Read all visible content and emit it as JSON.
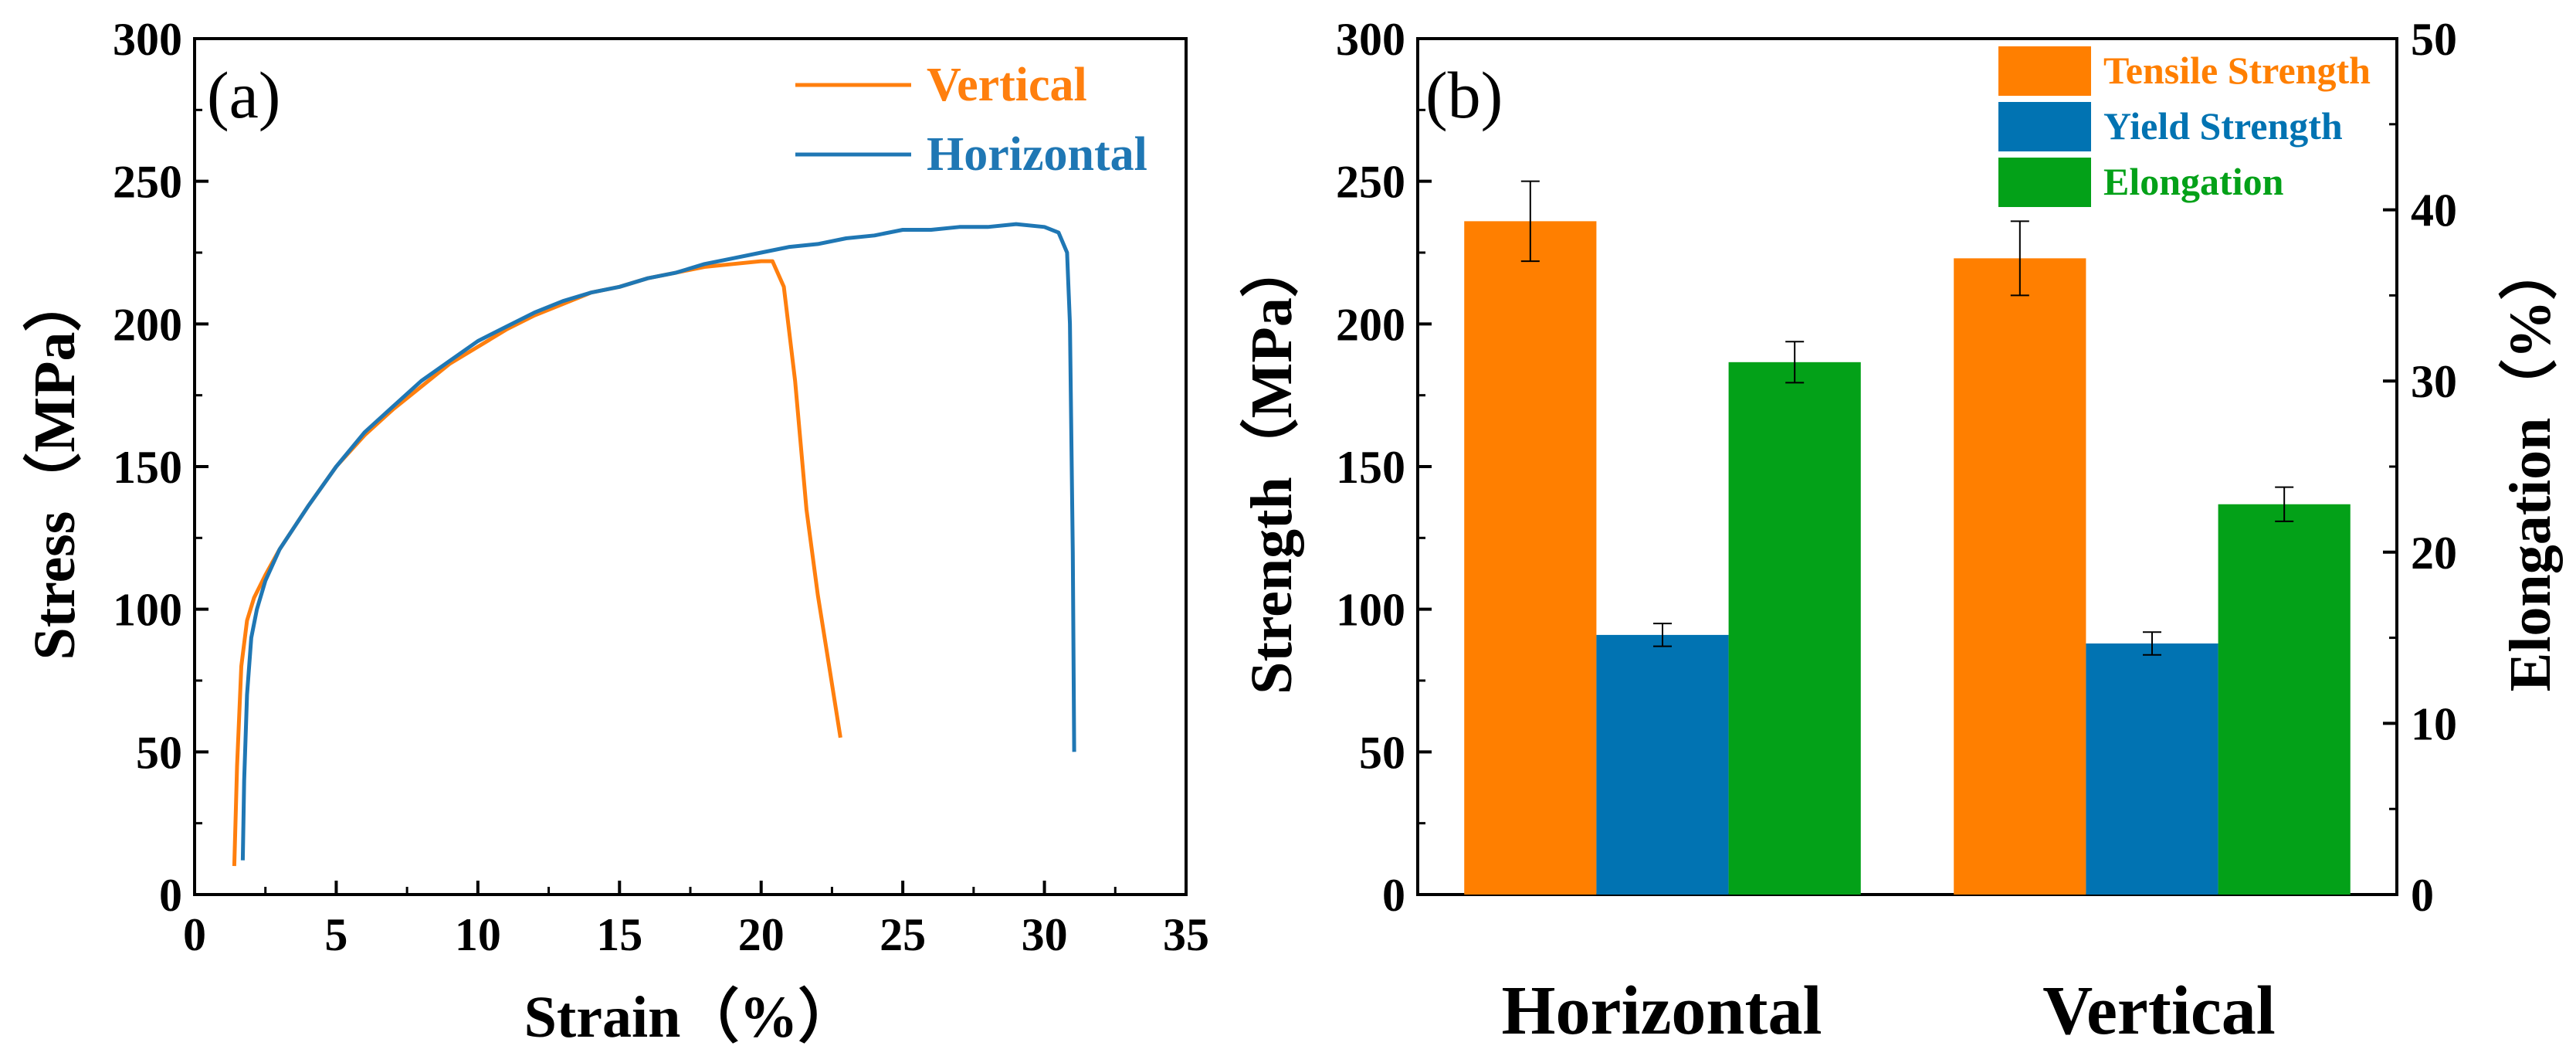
{
  "chart_data": [
    {
      "type": "line",
      "panel": "(a)",
      "xlabel": "Strain（%）",
      "ylabel": "Stress（MPa）",
      "xlim": [
        0,
        35
      ],
      "ylim": [
        0,
        300
      ],
      "xticks": [
        "0",
        "5",
        "10",
        "15",
        "20",
        "25",
        "30",
        "35"
      ],
      "yticks": [
        "0",
        "50",
        "100",
        "150",
        "200",
        "250",
        "300"
      ],
      "series": [
        {
          "name": "Vertical",
          "color": "#ff7f0e",
          "x": [
            1.4,
            1.5,
            1.65,
            1.85,
            2.1,
            2.5,
            3.0,
            4.0,
            5.0,
            6.0,
            7.0,
            8.0,
            9.0,
            10.0,
            11.0,
            12.0,
            13.0,
            14.0,
            15.0,
            16.0,
            17.0,
            18.0,
            19.0,
            20.0,
            20.4,
            20.8,
            21.2,
            21.6,
            22.0,
            22.4,
            22.8
          ],
          "y": [
            10,
            45,
            80,
            96,
            104,
            112,
            121,
            136,
            150,
            161,
            170,
            178,
            186,
            192,
            198,
            203,
            207,
            211,
            213,
            216,
            218,
            220,
            221,
            222,
            222,
            213,
            180,
            135,
            105,
            80,
            55
          ]
        },
        {
          "name": "Horizontal",
          "color": "#1f77b4",
          "x": [
            1.7,
            1.75,
            1.85,
            2.0,
            2.2,
            2.5,
            3.0,
            4.0,
            5.0,
            6.0,
            7.0,
            8.0,
            9.0,
            10.0,
            11.0,
            12.0,
            13.0,
            14.0,
            15.0,
            16.0,
            17.0,
            18.0,
            19.0,
            20.0,
            21.0,
            22.0,
            23.0,
            24.0,
            25.0,
            26.0,
            27.0,
            28.0,
            29.0,
            30.0,
            30.5,
            30.8,
            30.9,
            31.0,
            31.05
          ],
          "y": [
            12,
            40,
            70,
            90,
            100,
            110,
            121,
            136,
            150,
            162,
            171,
            180,
            187,
            194,
            199,
            204,
            208,
            211,
            213,
            216,
            218,
            221,
            223,
            225,
            227,
            228,
            230,
            231,
            233,
            233,
            234,
            234,
            235,
            234,
            232,
            225,
            200,
            120,
            50
          ]
        }
      ]
    },
    {
      "type": "bar",
      "panel": "(b)",
      "categories": [
        "Horizontal",
        "Vertical"
      ],
      "ylabel": "Strength（MPa）",
      "y2label": "Elongation（%）",
      "ylim": [
        0,
        300
      ],
      "y2lim": [
        0,
        50
      ],
      "yticks": [
        "0",
        "50",
        "100",
        "150",
        "200",
        "250",
        "300"
      ],
      "y2ticks": [
        "0",
        "10",
        "20",
        "30",
        "40",
        "50"
      ],
      "series": [
        {
          "name": "Tensile Strength",
          "color": "#ff7f00",
          "axis": "left",
          "values": [
            236,
            223
          ],
          "errors": [
            14,
            13
          ]
        },
        {
          "name": "Yield Strength",
          "color": "#0173b2",
          "axis": "left",
          "values": [
            91,
            88
          ],
          "errors": [
            4,
            4
          ]
        },
        {
          "name": "Elongation",
          "color": "#03a118",
          "axis": "right",
          "values": [
            31.1,
            22.8
          ],
          "errors": [
            1.2,
            1.0
          ]
        }
      ]
    }
  ]
}
